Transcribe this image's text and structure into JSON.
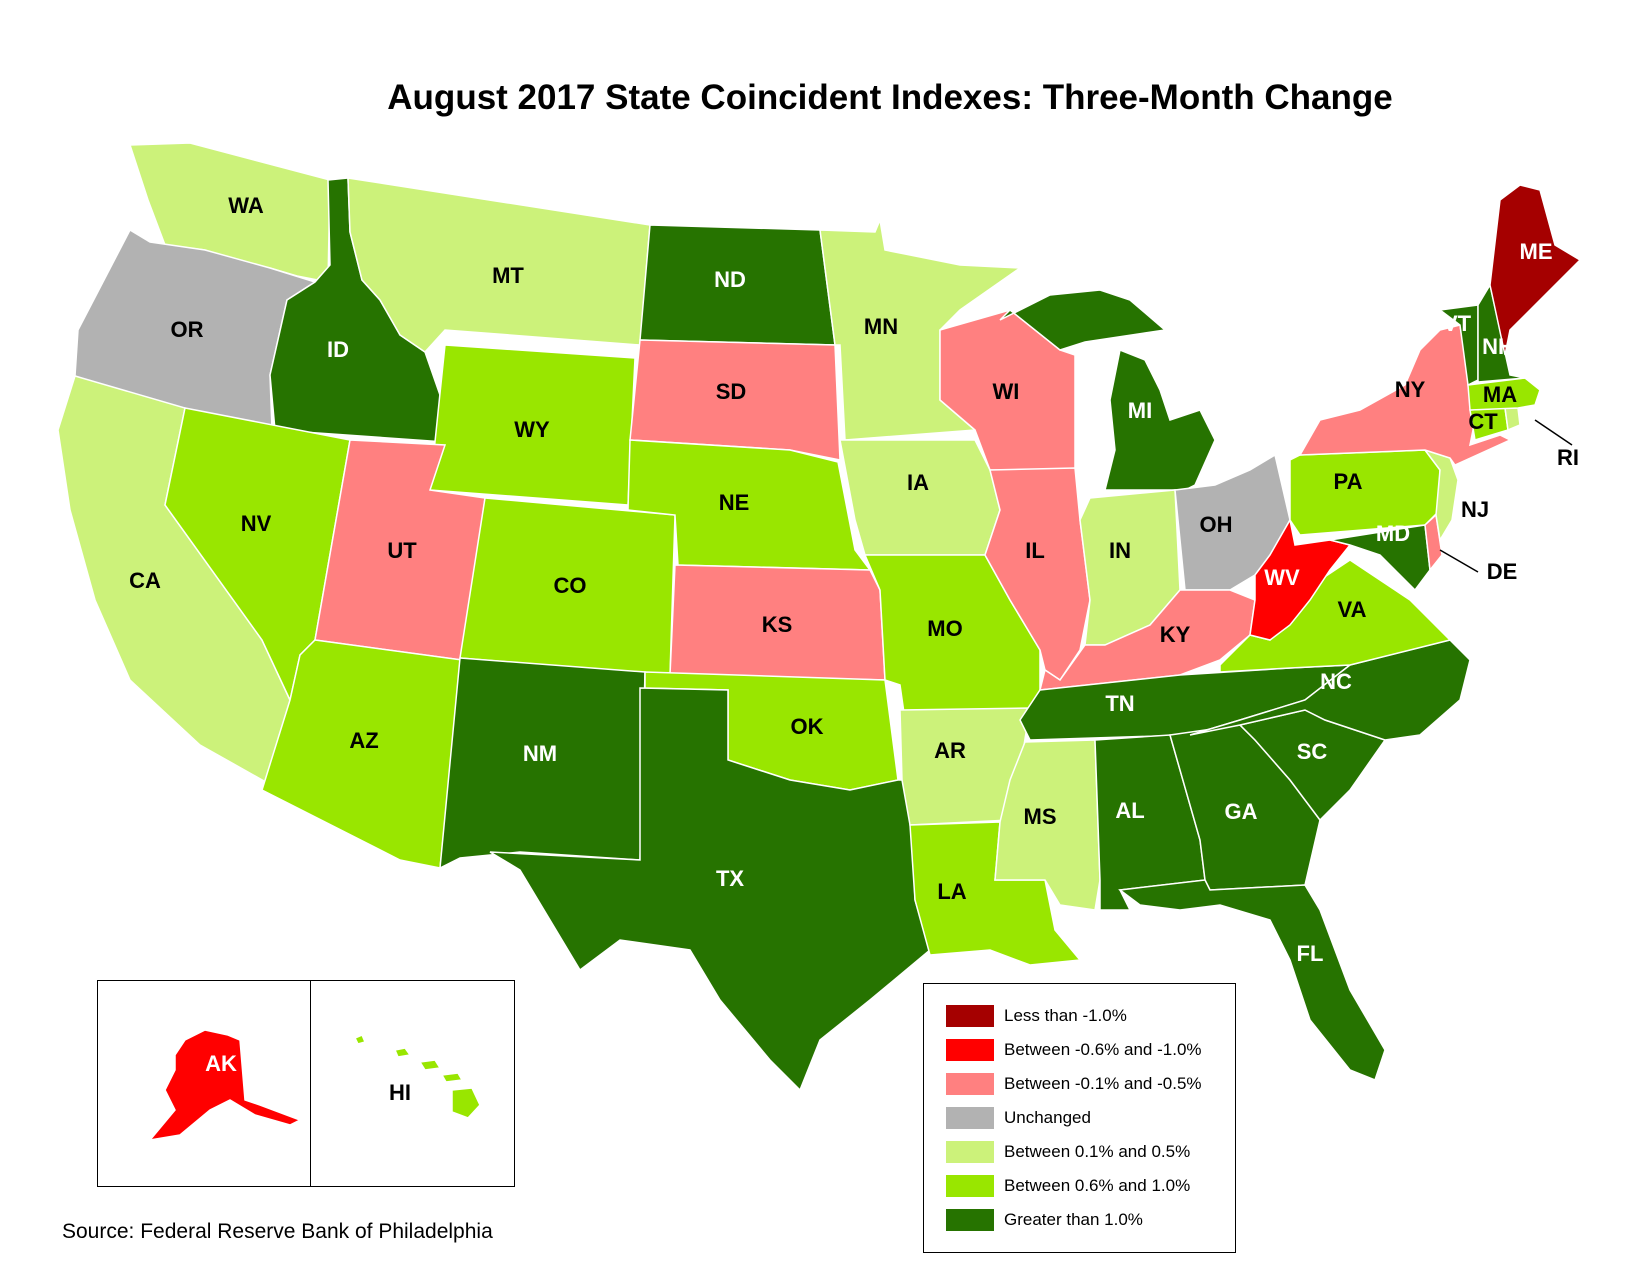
{
  "title": "August 2017 State Coincident Indexes: Three-Month Change",
  "source": "Source: Federal Reserve Bank of Philadelphia",
  "colors": {
    "lt_neg1": "#a50000",
    "neg06_1": "#ff0000",
    "neg01_05": "#ff8080",
    "unchanged": "#b2b2b2",
    "pos01_05": "#ccf27a",
    "pos06_1": "#99e600",
    "gt_1": "#267300"
  },
  "legend": [
    {
      "key": "lt_neg1",
      "label": "Less than -1.0%"
    },
    {
      "key": "neg06_1",
      "label": "Between -0.6% and -1.0%"
    },
    {
      "key": "neg01_05",
      "label": "Between -0.1% and -0.5%"
    },
    {
      "key": "unchanged",
      "label": "Unchanged"
    },
    {
      "key": "pos01_05",
      "label": "Between 0.1% and 0.5%"
    },
    {
      "key": "pos06_1",
      "label": "Between 0.6% and 1.0%"
    },
    {
      "key": "gt_1",
      "label": "Greater than 1.0%"
    }
  ],
  "states": {
    "WA": "pos01_05",
    "OR": "unchanged",
    "CA": "pos01_05",
    "ID": "gt_1",
    "NV": "pos06_1",
    "MT": "pos01_05",
    "WY": "pos06_1",
    "UT": "neg01_05",
    "AZ": "pos06_1",
    "CO": "pos06_1",
    "NM": "gt_1",
    "ND": "gt_1",
    "SD": "neg01_05",
    "NE": "pos06_1",
    "KS": "neg01_05",
    "OK": "pos06_1",
    "TX": "gt_1",
    "MN": "pos01_05",
    "IA": "pos01_05",
    "MO": "pos06_1",
    "AR": "pos01_05",
    "LA": "pos06_1",
    "WI": "neg01_05",
    "IL": "neg01_05",
    "MI": "gt_1",
    "IN": "pos01_05",
    "OH": "unchanged",
    "KY": "neg01_05",
    "TN": "gt_1",
    "MS": "pos01_05",
    "AL": "gt_1",
    "GA": "gt_1",
    "FL": "gt_1",
    "SC": "gt_1",
    "NC": "gt_1",
    "VA": "pos06_1",
    "WV": "neg06_1",
    "PA": "pos06_1",
    "NY": "neg01_05",
    "NJ": "pos01_05",
    "DE": "neg01_05",
    "MD": "gt_1",
    "CT": "pos06_1",
    "RI": "pos01_05",
    "MA": "pos06_1",
    "VT": "gt_1",
    "NH": "gt_1",
    "ME": "lt_neg1",
    "AK": "neg06_1",
    "HI": "pos06_1"
  }
}
